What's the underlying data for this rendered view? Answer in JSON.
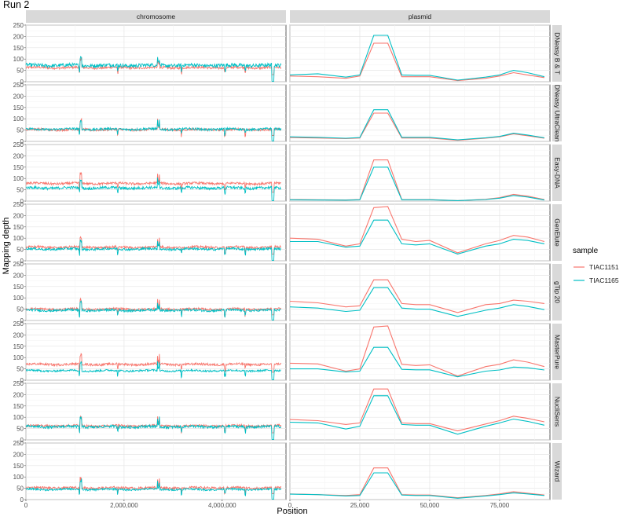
{
  "title": "Run 2",
  "colors": {
    "TIAC1151": "#F8766D",
    "TIAC1165": "#00BFC4"
  },
  "chart_data": {
    "type": "line",
    "title": "Run 2",
    "xlabel": "Position",
    "ylabel": "Mapping depth",
    "ylim": [
      0,
      250
    ],
    "y_ticks": [
      0,
      50,
      100,
      150,
      200,
      250
    ],
    "grid": true,
    "legend_position": "right",
    "legend_title": "sample",
    "series_names": [
      "TIAC1151",
      "TIAC1165"
    ],
    "columns": [
      {
        "name": "chromosome",
        "xlim": [
          0,
          5300000
        ],
        "x_ticks": [
          0,
          2000000,
          4000000
        ],
        "x_tick_labels": [
          "0",
          "2,000,000",
          "4,000,000"
        ]
      },
      {
        "name": "plasmid",
        "xlim": [
          0,
          93000
        ],
        "x_ticks": [
          0,
          25000,
          50000,
          75000
        ],
        "x_tick_labels": [
          "0",
          "25,000",
          "50,000",
          "75,000"
        ]
      }
    ],
    "plasmid_x": [
      0,
      10000,
      20000,
      25000,
      30000,
      35000,
      40000,
      45000,
      50000,
      60000,
      70000,
      75000,
      80000,
      85000,
      91000
    ],
    "rows": [
      {
        "name": "DNeasy B & T",
        "chromosome": {
          "TIAC1151_mean": 62,
          "TIAC1165_mean": 72,
          "TIAC1165_noise": 8
        },
        "plasmid": {
          "TIAC1151": [
            25,
            22,
            15,
            25,
            170,
            170,
            22,
            22,
            22,
            5,
            15,
            25,
            40,
            30,
            18
          ],
          "TIAC1165": [
            30,
            35,
            20,
            30,
            205,
            205,
            30,
            28,
            28,
            7,
            20,
            30,
            50,
            40,
            22
          ]
        }
      },
      {
        "name": "DNeasy UltraClean",
        "chromosome": {
          "TIAC1151_mean": 52,
          "TIAC1165_mean": 54,
          "TIAC1165_noise": 5
        },
        "plasmid": {
          "TIAC1151": [
            17,
            15,
            12,
            15,
            125,
            125,
            15,
            15,
            15,
            5,
            14,
            20,
            33,
            25,
            14
          ],
          "TIAC1165": [
            20,
            18,
            14,
            17,
            140,
            140,
            18,
            18,
            18,
            7,
            16,
            22,
            36,
            28,
            16
          ]
        }
      },
      {
        "name": "Easy-DNA",
        "chromosome": {
          "TIAC1151_mean": 78,
          "TIAC1165_mean": 58,
          "TIAC1165_noise": 6
        },
        "plasmid": {
          "TIAC1151": [
            7,
            6,
            5,
            7,
            182,
            182,
            7,
            7,
            7,
            2,
            8,
            15,
            30,
            22,
            7
          ],
          "TIAC1165": [
            6,
            5,
            4,
            6,
            150,
            150,
            6,
            6,
            6,
            2,
            7,
            13,
            25,
            18,
            5
          ]
        }
      },
      {
        "name": "GenElute",
        "chromosome": {
          "TIAC1151_mean": 60,
          "TIAC1165_mean": 52,
          "TIAC1165_noise": 5
        },
        "plasmid": {
          "TIAC1151": [
            100,
            95,
            65,
            75,
            235,
            240,
            95,
            85,
            90,
            35,
            75,
            90,
            112,
            105,
            85
          ],
          "TIAC1165": [
            85,
            85,
            60,
            65,
            180,
            180,
            75,
            70,
            75,
            30,
            65,
            75,
            95,
            90,
            75
          ]
        }
      },
      {
        "name": "gTip 20",
        "chromosome": {
          "TIAC1151_mean": 50,
          "TIAC1165_mean": 45,
          "TIAC1165_noise": 5
        },
        "plasmid": {
          "TIAC1151": [
            85,
            78,
            60,
            65,
            180,
            180,
            75,
            70,
            70,
            35,
            70,
            75,
            90,
            85,
            75
          ],
          "TIAC1165": [
            60,
            55,
            40,
            45,
            145,
            145,
            55,
            50,
            50,
            18,
            45,
            55,
            70,
            62,
            48
          ]
        }
      },
      {
        "name": "MasterPure",
        "chromosome": {
          "TIAC1151_mean": 70,
          "TIAC1165_mean": 42,
          "TIAC1165_noise": 4
        },
        "plasmid": {
          "TIAC1151": [
            75,
            72,
            40,
            50,
            235,
            240,
            70,
            65,
            68,
            18,
            60,
            70,
            90,
            80,
            60
          ],
          "TIAC1165": [
            50,
            50,
            36,
            40,
            145,
            145,
            48,
            46,
            46,
            15,
            40,
            45,
            58,
            55,
            45
          ]
        }
      },
      {
        "name": "NucliSens",
        "chromosome": {
          "TIAC1151_mean": 62,
          "TIAC1165_mean": 58,
          "TIAC1165_noise": 6
        },
        "plasmid": {
          "TIAC1151": [
            90,
            85,
            68,
            75,
            225,
            225,
            75,
            72,
            72,
            40,
            70,
            85,
            105,
            95,
            80
          ],
          "TIAC1165": [
            78,
            75,
            48,
            60,
            195,
            195,
            68,
            65,
            65,
            25,
            60,
            75,
            92,
            82,
            65
          ]
        }
      },
      {
        "name": "Wizard",
        "chromosome": {
          "TIAC1151_mean": 52,
          "TIAC1165_mean": 45,
          "TIAC1165_noise": 4
        },
        "plasmid": {
          "TIAC1151": [
            25,
            22,
            18,
            22,
            140,
            140,
            22,
            20,
            20,
            8,
            18,
            25,
            35,
            28,
            20
          ],
          "TIAC1165": [
            24,
            22,
            16,
            18,
            118,
            118,
            20,
            18,
            18,
            6,
            16,
            22,
            30,
            25,
            18
          ]
        }
      }
    ]
  }
}
